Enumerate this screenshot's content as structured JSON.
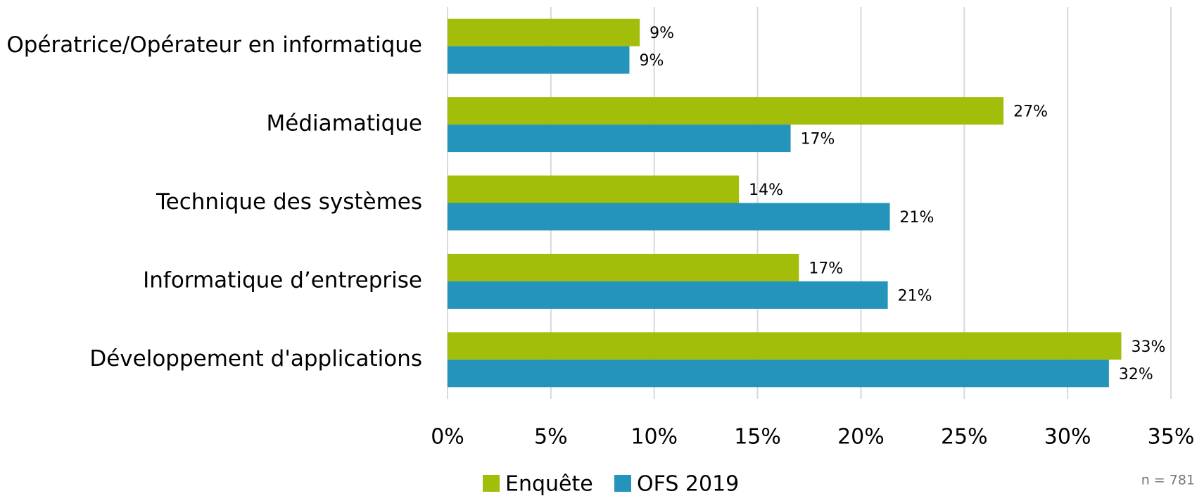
{
  "chart_data": {
    "type": "bar",
    "orientation": "horizontal",
    "categories": [
      "Opératrice/Opérateur en informatique",
      "Médiamatique",
      "Technique des systèmes",
      "Informatique d’entreprise",
      "Développement d'applications"
    ],
    "series": [
      {
        "name": "Enquête",
        "color": "#a2bd0a",
        "values": [
          9.3,
          26.9,
          14.1,
          17.0,
          32.6
        ],
        "value_labels": [
          "9%",
          "27%",
          "14%",
          "17%",
          "33%"
        ]
      },
      {
        "name": "OFS 2019",
        "color": "#2494bb",
        "values": [
          8.8,
          16.6,
          21.4,
          21.3,
          32.0
        ],
        "value_labels": [
          "9%",
          "17%",
          "21%",
          "21%",
          "32%"
        ]
      }
    ],
    "xlim": [
      0,
      35
    ],
    "xticks": [
      {
        "value": 0,
        "label": "0%"
      },
      {
        "value": 5,
        "label": "5%"
      },
      {
        "value": 10,
        "label": "10%"
      },
      {
        "value": 15,
        "label": "15%"
      },
      {
        "value": 20,
        "label": "20%"
      },
      {
        "value": 25,
        "label": "25%"
      },
      {
        "value": 30,
        "label": "30%"
      },
      {
        "value": 35,
        "label": "35%"
      }
    ],
    "grid": true,
    "legend": "bottom",
    "note": "n = 781"
  }
}
